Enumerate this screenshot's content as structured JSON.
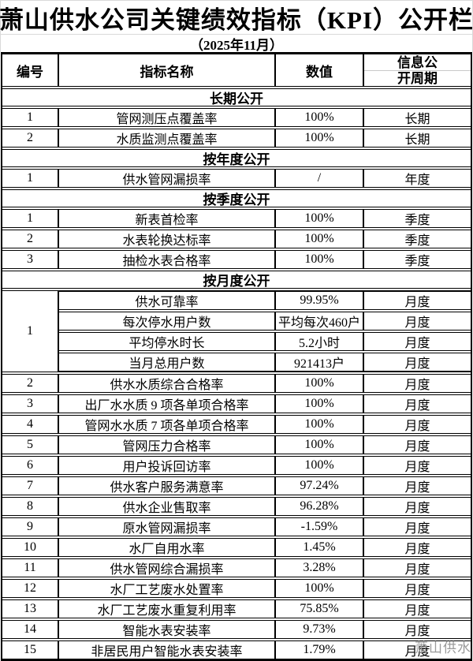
{
  "title": "萧山供水公司关键绩效指标（KPI）公开栏",
  "subtitle": "（2025年11月）",
  "watermark": "萧山供水",
  "table": {
    "headers": {
      "no": "编号",
      "name": "指标名称",
      "value": "数值",
      "period_line1": "信息公",
      "period_line2": "开周期"
    },
    "sections": [
      {
        "title": "长期公开",
        "rows": [
          {
            "no": "1",
            "name": "管网测压点覆盖率",
            "value": "100%",
            "period": "长期"
          },
          {
            "no": "2",
            "name": "水质监测点覆盖率",
            "value": "100%",
            "period": "长期"
          }
        ]
      },
      {
        "title": "按年度公开",
        "rows": [
          {
            "no": "1",
            "name": "供水管网漏损率",
            "value": "/",
            "period": "年度"
          }
        ]
      },
      {
        "title": "按季度公开",
        "rows": [
          {
            "no": "1",
            "name": "新表首检率",
            "value": "100%",
            "period": "季度"
          },
          {
            "no": "2",
            "name": "水表轮换达标率",
            "value": "100%",
            "period": "季度"
          },
          {
            "no": "3",
            "name": "抽检水表合格率",
            "value": "100%",
            "period": "季度"
          }
        ]
      },
      {
        "title": "按月度公开",
        "rows": [
          {
            "no": "1",
            "items": [
              {
                "name": "供水可靠率",
                "value": "99.95%",
                "period": "月度"
              },
              {
                "name": "每次停水用户数",
                "value": "平均每次460户",
                "period": "月度"
              },
              {
                "name": "平均停水时长",
                "value": "5.2小时",
                "period": "月度"
              },
              {
                "name": "当月总用户数",
                "value": "921413户",
                "period": "月度"
              }
            ]
          },
          {
            "no": "2",
            "name": "供水水质综合合格率",
            "value": "100%",
            "period": "月度"
          },
          {
            "no": "3",
            "name": "出厂水水质 9 项各单项合格率",
            "value": "100%",
            "period": "月度"
          },
          {
            "no": "4",
            "name": "管网水水质 7 项各单项合格率",
            "value": "100%",
            "period": "月度"
          },
          {
            "no": "5",
            "name": "管网压力合格率",
            "value": "100%",
            "period": "月度"
          },
          {
            "no": "6",
            "name": "用户投诉回访率",
            "value": "100%",
            "period": "月度"
          },
          {
            "no": "7",
            "name": "供水客户服务满意率",
            "value": "97.24%",
            "period": "月度"
          },
          {
            "no": "8",
            "name": "供水企业售取率",
            "value": "96.28%",
            "period": "月度"
          },
          {
            "no": "9",
            "name": "原水管网漏损率",
            "value": "-1.59%",
            "period": "月度"
          },
          {
            "no": "10",
            "name": "水厂自用水率",
            "value": "1.45%",
            "period": "月度"
          },
          {
            "no": "11",
            "name": "供水管网综合漏损率",
            "value": "3.28%",
            "period": "月度"
          },
          {
            "no": "12",
            "name": "水厂工艺废水处置率",
            "value": "100%",
            "period": "月度"
          },
          {
            "no": "13",
            "name": "水厂工艺废水重复利用率",
            "value": "75.85%",
            "period": "月度"
          },
          {
            "no": "14",
            "name": "智能水表安装率",
            "value": "9.73%",
            "period": "月度"
          },
          {
            "no": "15",
            "name": "非居民用户智能水表安装率",
            "value": "1.79%",
            "period": "月度"
          }
        ]
      }
    ]
  }
}
